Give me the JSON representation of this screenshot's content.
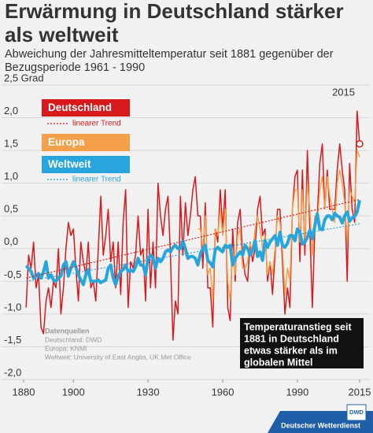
{
  "chart_data": {
    "type": "line",
    "title": [
      "Erwärmung in Deutschland stärker",
      "als weltweit"
    ],
    "subtitle": [
      "Abweichung der Jahresmitteltemperatur seit 1881 gegenüber der",
      "Bezugsperiode 1961 - 1990"
    ],
    "x": [
      1881,
      1882,
      1883,
      1884,
      1885,
      1886,
      1887,
      1888,
      1889,
      1890,
      1891,
      1892,
      1893,
      1894,
      1895,
      1896,
      1897,
      1898,
      1899,
      1900,
      1901,
      1902,
      1903,
      1904,
      1905,
      1906,
      1907,
      1908,
      1909,
      1910,
      1911,
      1912,
      1913,
      1914,
      1915,
      1916,
      1917,
      1918,
      1919,
      1920,
      1921,
      1922,
      1923,
      1924,
      1925,
      1926,
      1927,
      1928,
      1929,
      1930,
      1931,
      1932,
      1933,
      1934,
      1935,
      1936,
      1937,
      1938,
      1939,
      1940,
      1941,
      1942,
      1943,
      1944,
      1945,
      1946,
      1947,
      1948,
      1949,
      1950,
      1951,
      1952,
      1953,
      1954,
      1955,
      1956,
      1957,
      1958,
      1959,
      1960,
      1961,
      1962,
      1963,
      1964,
      1965,
      1966,
      1967,
      1968,
      1969,
      1970,
      1971,
      1972,
      1973,
      1974,
      1975,
      1976,
      1977,
      1978,
      1979,
      1980,
      1981,
      1982,
      1983,
      1984,
      1985,
      1986,
      1987,
      1988,
      1989,
      1990,
      1991,
      1992,
      1993,
      1994,
      1995,
      1996,
      1997,
      1998,
      1999,
      2000,
      2001,
      2002,
      2003,
      2004,
      2005,
      2006,
      2007,
      2008,
      2009,
      2010,
      2011,
      2012,
      2013,
      2014,
      2015
    ],
    "series": [
      {
        "name": "Deutschland",
        "color": "#d7191c",
        "width": 1.5,
        "values": [
          -0.9,
          -0.1,
          -0.3,
          0.1,
          -0.6,
          -0.4,
          -1.2,
          -1.3,
          -0.8,
          -0.6,
          -0.9,
          -0.5,
          -0.6,
          0.0,
          -1.0,
          -0.6,
          0.0,
          0.4,
          0.2,
          0.3,
          -0.3,
          -0.8,
          0.1,
          -0.2,
          -0.4,
          0.1,
          -0.6,
          -0.5,
          -0.8,
          0.0,
          0.8,
          -0.1,
          0.2,
          0.6,
          -0.2,
          0.1,
          -0.6,
          0.1,
          -0.7,
          0.4,
          0.9,
          -0.9,
          -0.2,
          -0.3,
          -0.1,
          0.5,
          -0.1,
          0.0,
          -0.8,
          0.6,
          -0.6,
          0.1,
          -0.6,
          1.0,
          0.5,
          0.2,
          0.6,
          0.8,
          -0.1,
          -1.4,
          -0.8,
          -1.0,
          0.8,
          -0.1,
          0.7,
          0.2,
          0.5,
          0.9,
          1.1,
          0.5,
          0.5,
          -0.3,
          0.7,
          -0.6,
          -0.6,
          -1.2,
          0.3,
          0.1,
          0.9,
          0.3,
          0.9,
          -0.9,
          -1.1,
          0.3,
          -0.5,
          0.4,
          0.6,
          -0.1,
          -0.4,
          -0.5,
          0.1,
          -0.2,
          0.0,
          0.6,
          0.8,
          0.2,
          0.3,
          -0.5,
          -0.2,
          -0.7,
          -0.1,
          0.6,
          0.6,
          -0.2,
          -1.0,
          -0.6,
          -0.9,
          0.6,
          1.1,
          1.2,
          -0.2,
          1.2,
          -0.1,
          1.5,
          0.3,
          -0.9,
          0.3,
          0.5,
          1.3,
          1.6,
          0.6,
          1.2,
          0.6,
          0.6,
          0.6,
          1.2,
          1.6,
          1.2,
          0.9,
          -0.5,
          1.3,
          0.6,
          0.4,
          2.1,
          1.6
        ]
      },
      {
        "name": "Europa",
        "color": "#f4a04a",
        "width": 1.5,
        "values": [
          null,
          null,
          null,
          null,
          null,
          null,
          null,
          null,
          null,
          null,
          null,
          null,
          null,
          null,
          null,
          null,
          null,
          null,
          null,
          null,
          null,
          null,
          null,
          null,
          null,
          null,
          null,
          null,
          null,
          null,
          null,
          null,
          null,
          null,
          null,
          null,
          null,
          null,
          null,
          null,
          null,
          null,
          null,
          null,
          null,
          null,
          null,
          null,
          null,
          null,
          null,
          null,
          null,
          null,
          null,
          null,
          null,
          null,
          null,
          null,
          null,
          null,
          null,
          null,
          null,
          null,
          null,
          null,
          null,
          0.3,
          0.3,
          0.0,
          0.5,
          -0.4,
          -0.3,
          -0.8,
          0.3,
          0.2,
          0.6,
          0.2,
          0.6,
          -0.5,
          -0.8,
          0.0,
          -0.4,
          0.2,
          0.3,
          -0.3,
          -0.3,
          -0.2,
          0.1,
          -0.1,
          0.3,
          0.5,
          0.3,
          0.0,
          0.2,
          -0.4,
          -0.2,
          -0.4,
          0.0,
          0.5,
          0.4,
          0.0,
          -0.7,
          -0.3,
          -0.5,
          0.6,
          0.9,
          0.9,
          0.1,
          0.9,
          0.1,
          1.0,
          0.6,
          -0.1,
          0.5,
          0.4,
          0.9,
          1.1,
          0.6,
          1.1,
          0.8,
          0.6,
          0.4,
          1.0,
          1.2,
          1.0,
          0.7,
          0.1,
          0.9,
          0.8,
          0.7,
          1.5,
          1.4
        ]
      },
      {
        "name": "Weltweit",
        "color": "#27a5dc",
        "width": 4,
        "values": [
          -0.26,
          -0.3,
          -0.35,
          -0.45,
          -0.42,
          -0.38,
          -0.45,
          -0.35,
          -0.2,
          -0.45,
          -0.4,
          -0.48,
          -0.5,
          -0.45,
          -0.42,
          -0.25,
          -0.2,
          -0.42,
          -0.3,
          -0.2,
          -0.28,
          -0.4,
          -0.48,
          -0.55,
          -0.4,
          -0.32,
          -0.5,
          -0.5,
          -0.5,
          -0.48,
          -0.52,
          -0.5,
          -0.48,
          -0.3,
          -0.25,
          -0.45,
          -0.55,
          -0.42,
          -0.35,
          -0.32,
          -0.25,
          -0.35,
          -0.33,
          -0.35,
          -0.28,
          -0.15,
          -0.25,
          -0.25,
          -0.4,
          -0.15,
          -0.1,
          -0.15,
          -0.3,
          -0.15,
          -0.2,
          -0.15,
          -0.05,
          -0.02,
          -0.05,
          0.02,
          0.05,
          0.0,
          0.0,
          0.12,
          0.0,
          -0.15,
          -0.12,
          -0.12,
          -0.15,
          -0.25,
          -0.08,
          0.0,
          0.05,
          -0.18,
          -0.22,
          -0.28,
          -0.02,
          0.02,
          -0.02,
          -0.05,
          0.05,
          0.02,
          0.05,
          -0.25,
          -0.15,
          -0.1,
          -0.05,
          -0.1,
          0.05,
          0.0,
          -0.1,
          -0.02,
          0.12,
          -0.12,
          -0.05,
          -0.18,
          0.12,
          0.02,
          0.1,
          0.15,
          0.2,
          0.05,
          0.25,
          0.05,
          0.02,
          0.08,
          0.2,
          0.2,
          0.12,
          0.3,
          0.25,
          0.07,
          0.1,
          0.17,
          0.28,
          0.15,
          0.35,
          0.53,
          0.3,
          0.29,
          0.44,
          0.5,
          0.5,
          0.44,
          0.54,
          0.5,
          0.48,
          0.39,
          0.5,
          0.56,
          0.42,
          0.47,
          0.49,
          0.56,
          0.74
        ]
      }
    ],
    "trends": [
      {
        "name": "linearer Trend",
        "color": "#d7191c",
        "x": [
          1881,
          2015
        ],
        "values": [
          -0.45,
          0.75
        ]
      },
      {
        "name": "linearer Trend",
        "color": "#27a5dc",
        "x": [
          1881,
          2015
        ],
        "values": [
          -0.5,
          0.38
        ]
      }
    ],
    "xlim": [
      1880,
      2015
    ],
    "xticks": [
      1880,
      1900,
      1930,
      1960,
      1990,
      2015
    ],
    "ylim": [
      -2.0,
      2.5
    ],
    "yticks": [
      {
        "value": -2.0,
        "label": "-2,0"
      },
      {
        "value": -1.5,
        "label": "-1,5"
      },
      {
        "value": -1.0,
        "label": "-1,0"
      },
      {
        "value": -0.5,
        "label": "-0,5"
      },
      {
        "value": 0.0,
        "label": "0,0"
      },
      {
        "value": 0.5,
        "label": "0,5"
      },
      {
        "value": 1.0,
        "label": "1,0"
      },
      {
        "value": 1.5,
        "label": "1,5"
      },
      {
        "value": 2.0,
        "label": "2,0"
      },
      {
        "value": 2.5,
        "label": "2,5 Grad"
      }
    ],
    "grid": true,
    "highlight": "2015",
    "annotation": [
      "Temperaturanstieg seit",
      "1881 in Deutschland",
      "etwas stärker als im",
      "globalen Mittel"
    ],
    "sources": {
      "title": "Datenquellen",
      "lines": [
        "Deutschland: DWD",
        "Europa: KNMI",
        "Weltweit: University of East Anglia, UK Met Office"
      ]
    },
    "footer": {
      "logo": "DWD",
      "text": "Deutscher Wetterdienst"
    }
  }
}
